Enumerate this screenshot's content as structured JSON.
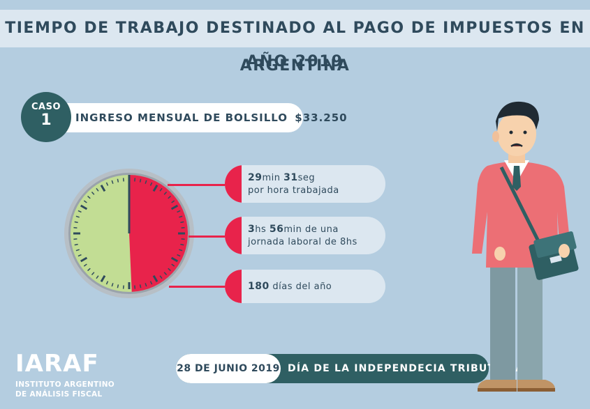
{
  "header": {
    "title": "TIEMPO DE TRABAJO DESTINADO AL PAGO DE IMPUESTOS EN ARGENTINA",
    "year": "AÑO 2019"
  },
  "case": {
    "label": "CASO",
    "number": "1",
    "income_label": "INGRESO MENSUAL DE BOLSILLO",
    "income_value": "$33.250"
  },
  "stopwatch": {
    "fraction_red": 0.493,
    "colors": {
      "red": "#e8234b",
      "green": "#c2dd94",
      "rim": "#b7bfc6",
      "hand": "#2f4a5c"
    }
  },
  "facts": [
    {
      "strong1": "29",
      "unit1": "min ",
      "strong2": "31",
      "unit2": "seg",
      "line2": "por hora trabajada"
    },
    {
      "strong1": "3",
      "unit1": "hs ",
      "strong2": "56",
      "unit2": "min de una",
      "line2": "jornada laboral de 8hs"
    },
    {
      "strong1": "180",
      "unit1": " días del año"
    }
  ],
  "logo": {
    "mark": "IARAF",
    "line1": "INSTITUTO ARGENTINO",
    "line2": "DE ANÁLISIS FISCAL"
  },
  "bottom": {
    "date": "28 DE JUNIO 2019",
    "text": "DÍA DE LA INDEPENDECIA TRIBUTARIA"
  },
  "colors": {
    "background": "#b4cde0",
    "dark_teal": "#2f5f63",
    "red": "#e8234b",
    "text": "#2f4a5c"
  }
}
